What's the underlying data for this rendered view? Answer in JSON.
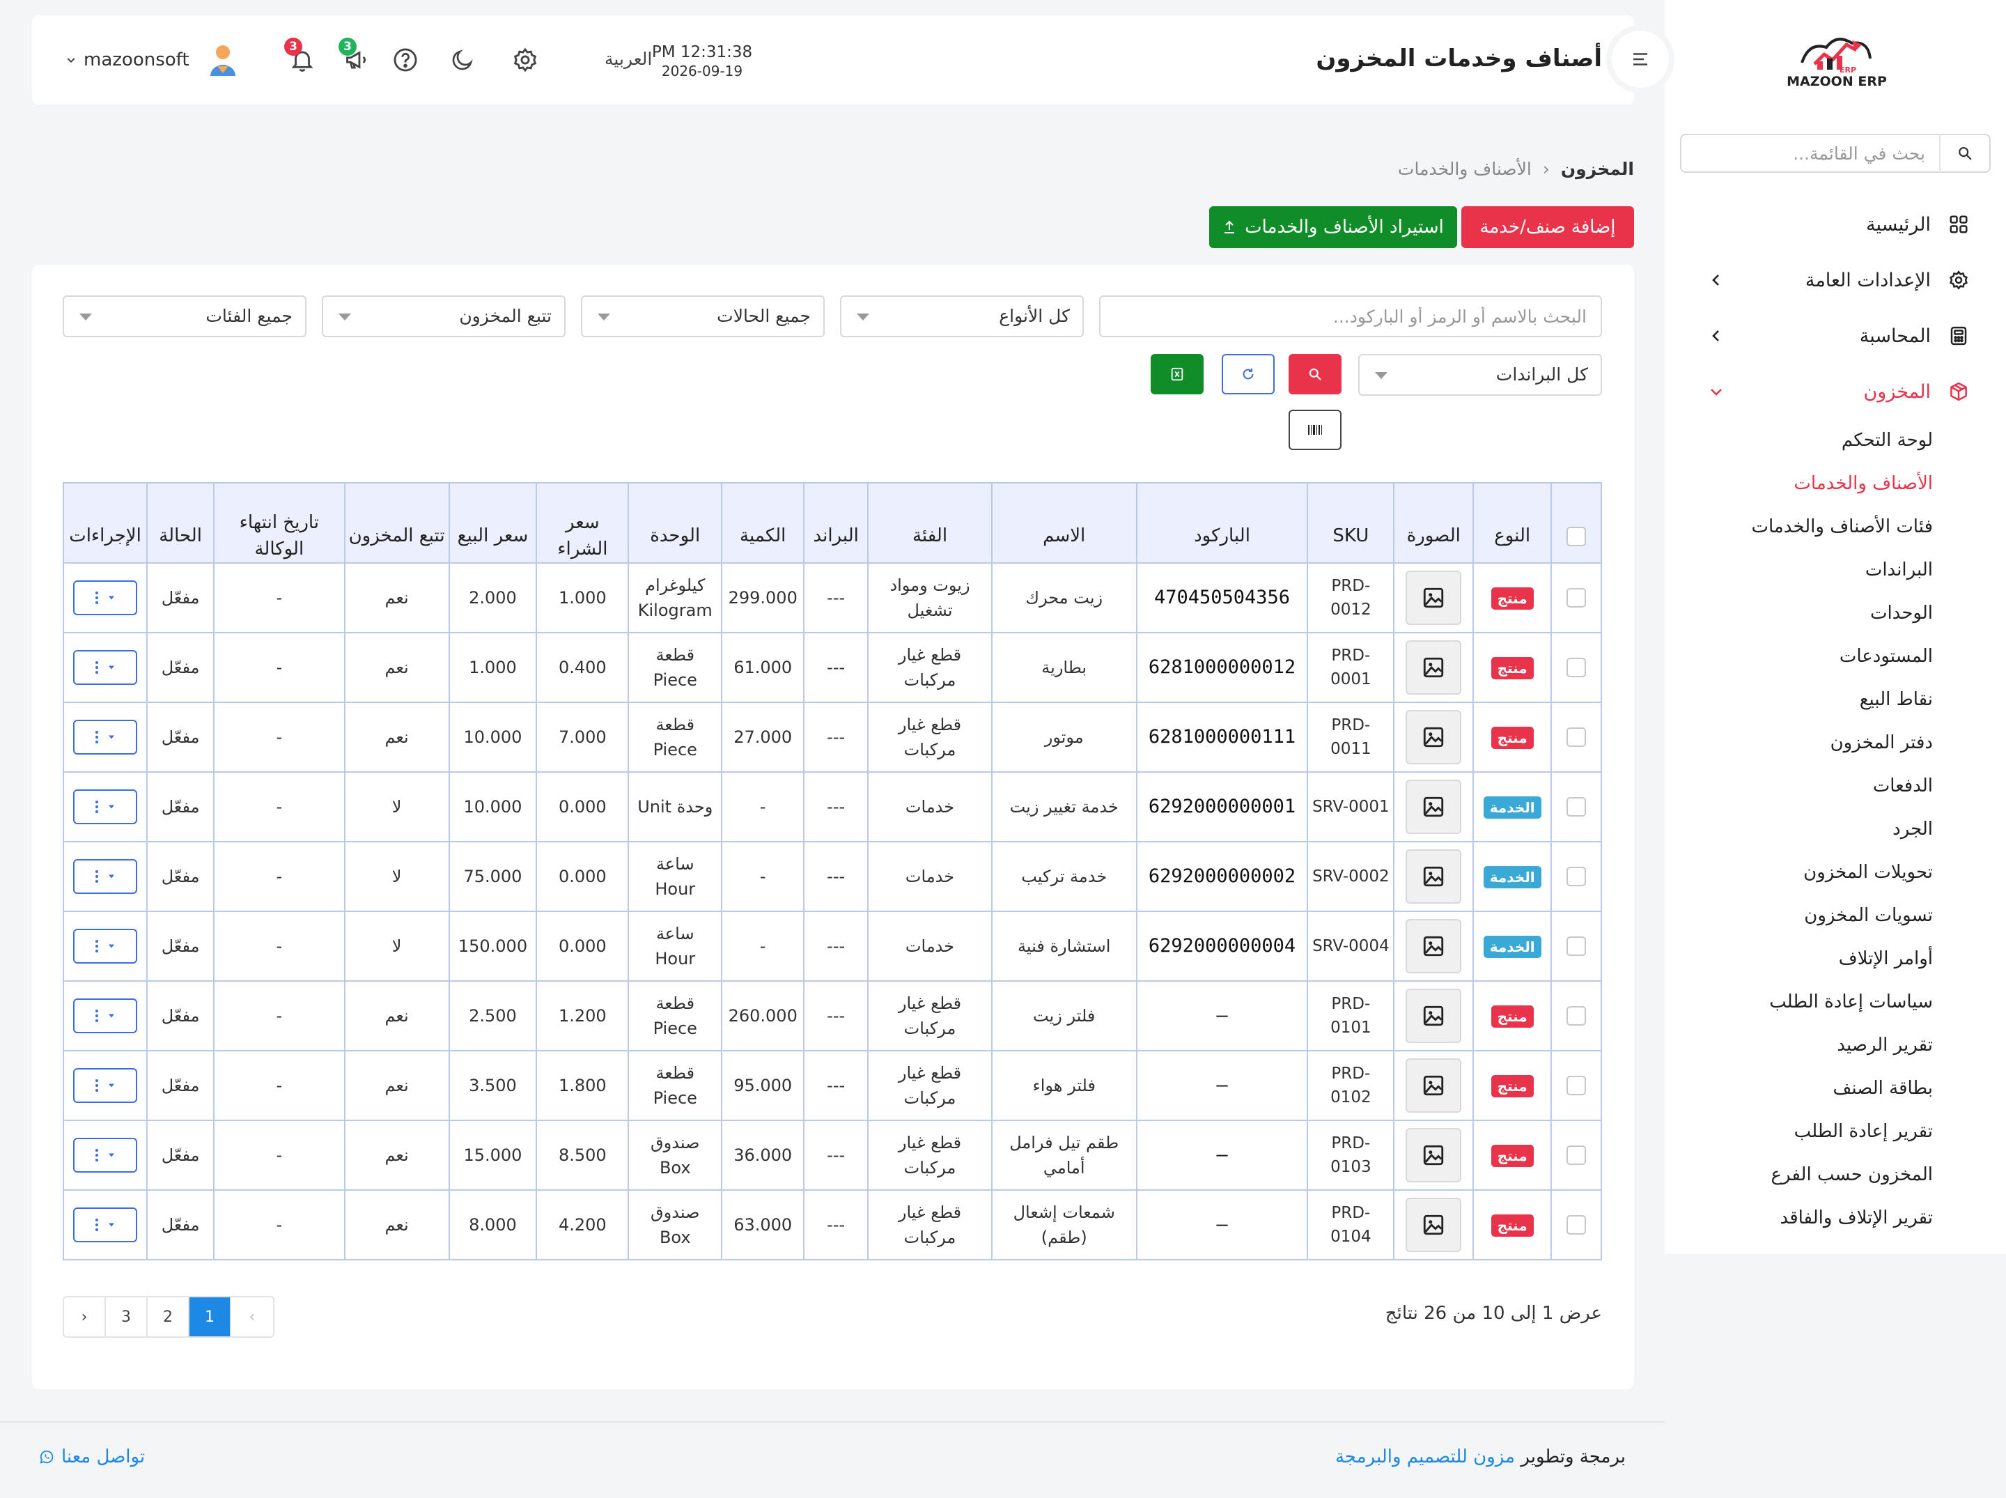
{
  "brand": {
    "logo_text": "MAZOON ERP",
    "logo_subtext": "ERP"
  },
  "sidebar": {
    "search_placeholder": "بحث في القائمة...",
    "nav": [
      {
        "label": "الرئيسية",
        "icon": "grid-icon"
      },
      {
        "label": "الإعدادات العامة",
        "icon": "gear-icon"
      },
      {
        "label": "المحاسبة",
        "icon": "calculator-icon"
      },
      {
        "label": "المخزون",
        "icon": "box-icon"
      }
    ],
    "submenu": [
      "لوحة التحكم",
      "الأصناف والخدمات",
      "فئات الأصناف والخدمات",
      "البراندات",
      "الوحدات",
      "المستودعات",
      "نقاط البيع",
      "دفتر المخزون",
      "الدفعات",
      "الجرد",
      "تحويلات المخزون",
      "تسويات المخزون",
      "أوامر الإتلاف",
      "سياسات إعادة الطلب",
      "تقرير الرصيد",
      "بطاقة الصنف",
      "تقرير إعادة الطلب",
      "المخزون حسب الفرع",
      "تقرير الإتلاف والفاقد"
    ]
  },
  "header": {
    "title": "أصناف وخدمات المخزون",
    "time": "PM 12:31:38",
    "date": "2026-09-19",
    "language": "العربية",
    "notifications_count": "3",
    "announcements_count": "3",
    "user_name": "mazoonsoft"
  },
  "breadcrumb": {
    "root": "المخزون",
    "separator": "‹",
    "current": "الأصناف والخدمات"
  },
  "actions": {
    "add_label": "إضافة صنف/خدمة",
    "import_label": "استيراد الأصناف والخدمات"
  },
  "filters": {
    "search_placeholder": "البحث بالاسم أو الرمز أو الباركود...",
    "types": "كل الأنواع",
    "statuses": "جميع الحالات",
    "stock_tracking": "تتبع المخزون",
    "categories": "جميع الفئات",
    "brands": "كل البراندات"
  },
  "table": {
    "headers": [
      "",
      "النوع",
      "الصورة",
      "SKU",
      "الباركود",
      "الاسم",
      "الفئة",
      "البراند",
      "الكمية",
      "الوحدة",
      "سعر الشراء",
      "سعر البيع",
      "تتبع المخزون",
      "تاريخ انتهاء الوكالة",
      "الحالة",
      "الإجراءات"
    ],
    "rows": [
      {
        "type": "منتج",
        "sku": "PRD-0012",
        "barcode": "470450504356",
        "name": "زيت محرك",
        "category": "زيوت ومواد تشغيل",
        "brand": "---",
        "qty": "299.000",
        "unit": "كيلوغرام Kilogram",
        "buy": "1.000",
        "sell": "2.000",
        "track": "نعم",
        "expiry": "-",
        "status": "مفعّل"
      },
      {
        "type": "منتج",
        "sku": "PRD-0001",
        "barcode": "6281000000012",
        "name": "بطارية",
        "category": "قطع غيار مركبات",
        "brand": "---",
        "qty": "61.000",
        "unit": "قطعة Piece",
        "buy": "0.400",
        "sell": "1.000",
        "track": "نعم",
        "expiry": "-",
        "status": "مفعّل"
      },
      {
        "type": "منتج",
        "sku": "PRD-0011",
        "barcode": "6281000000111",
        "name": "موتور",
        "category": "قطع غيار مركبات",
        "brand": "---",
        "qty": "27.000",
        "unit": "قطعة Piece",
        "buy": "7.000",
        "sell": "10.000",
        "track": "نعم",
        "expiry": "-",
        "status": "مفعّل"
      },
      {
        "type": "الخدمة",
        "sku": "SRV-0001",
        "barcode": "6292000000001",
        "name": "خدمة تغيير زيت",
        "category": "خدمات",
        "brand": "---",
        "qty": "-",
        "unit": "وحدة Unit",
        "buy": "0.000",
        "sell": "10.000",
        "track": "لا",
        "expiry": "-",
        "status": "مفعّل"
      },
      {
        "type": "الخدمة",
        "sku": "SRV-0002",
        "barcode": "6292000000002",
        "name": "خدمة تركيب",
        "category": "خدمات",
        "brand": "---",
        "qty": "-",
        "unit": "ساعة Hour",
        "buy": "0.000",
        "sell": "75.000",
        "track": "لا",
        "expiry": "-",
        "status": "مفعّل"
      },
      {
        "type": "الخدمة",
        "sku": "SRV-0004",
        "barcode": "6292000000004",
        "name": "استشارة فنية",
        "category": "خدمات",
        "brand": "---",
        "qty": "-",
        "unit": "ساعة Hour",
        "buy": "0.000",
        "sell": "150.000",
        "track": "لا",
        "expiry": "-",
        "status": "مفعّل"
      },
      {
        "type": "منتج",
        "sku": "PRD-0101",
        "barcode": "—",
        "name": "فلتر زيت",
        "category": "قطع غيار مركبات",
        "brand": "---",
        "qty": "260.000",
        "unit": "قطعة Piece",
        "buy": "1.200",
        "sell": "2.500",
        "track": "نعم",
        "expiry": "-",
        "status": "مفعّل"
      },
      {
        "type": "منتج",
        "sku": "PRD-0102",
        "barcode": "—",
        "name": "فلتر هواء",
        "category": "قطع غيار مركبات",
        "brand": "---",
        "qty": "95.000",
        "unit": "قطعة Piece",
        "buy": "1.800",
        "sell": "3.500",
        "track": "نعم",
        "expiry": "-",
        "status": "مفعّل"
      },
      {
        "type": "منتج",
        "sku": "PRD-0103",
        "barcode": "—",
        "name": "طقم تيل فرامل أمامي",
        "category": "قطع غيار مركبات",
        "brand": "---",
        "qty": "36.000",
        "unit": "صندوق Box",
        "buy": "8.500",
        "sell": "15.000",
        "track": "نعم",
        "expiry": "-",
        "status": "مفعّل"
      },
      {
        "type": "منتج",
        "sku": "PRD-0104",
        "barcode": "—",
        "name": "شمعات إشعال (طقم)",
        "category": "قطع غيار مركبات",
        "brand": "---",
        "qty": "63.000",
        "unit": "صندوق Box",
        "buy": "4.200",
        "sell": "8.000",
        "track": "نعم",
        "expiry": "-",
        "status": "مفعّل"
      }
    ]
  },
  "pagination": {
    "prev": "‹",
    "next": "›",
    "pages": [
      "1",
      "2",
      "3"
    ],
    "active": "1",
    "info": "عرض 1 إلى 10 من 26 نتائج"
  },
  "footer": {
    "credit_prefix": "برمجة وتطوير",
    "credit_link": "مزون للتصميم والبرمجة",
    "contact": "تواصل معنا"
  },
  "colors": {
    "accent_red": "#e8334a",
    "accent_green": "#108c28",
    "accent_blue": "#1e88e5",
    "badge_product": "#e8334a",
    "badge_service": "#3aa9d6",
    "table_header_bg": "#eceffd",
    "table_border": "#b9cbe8"
  }
}
